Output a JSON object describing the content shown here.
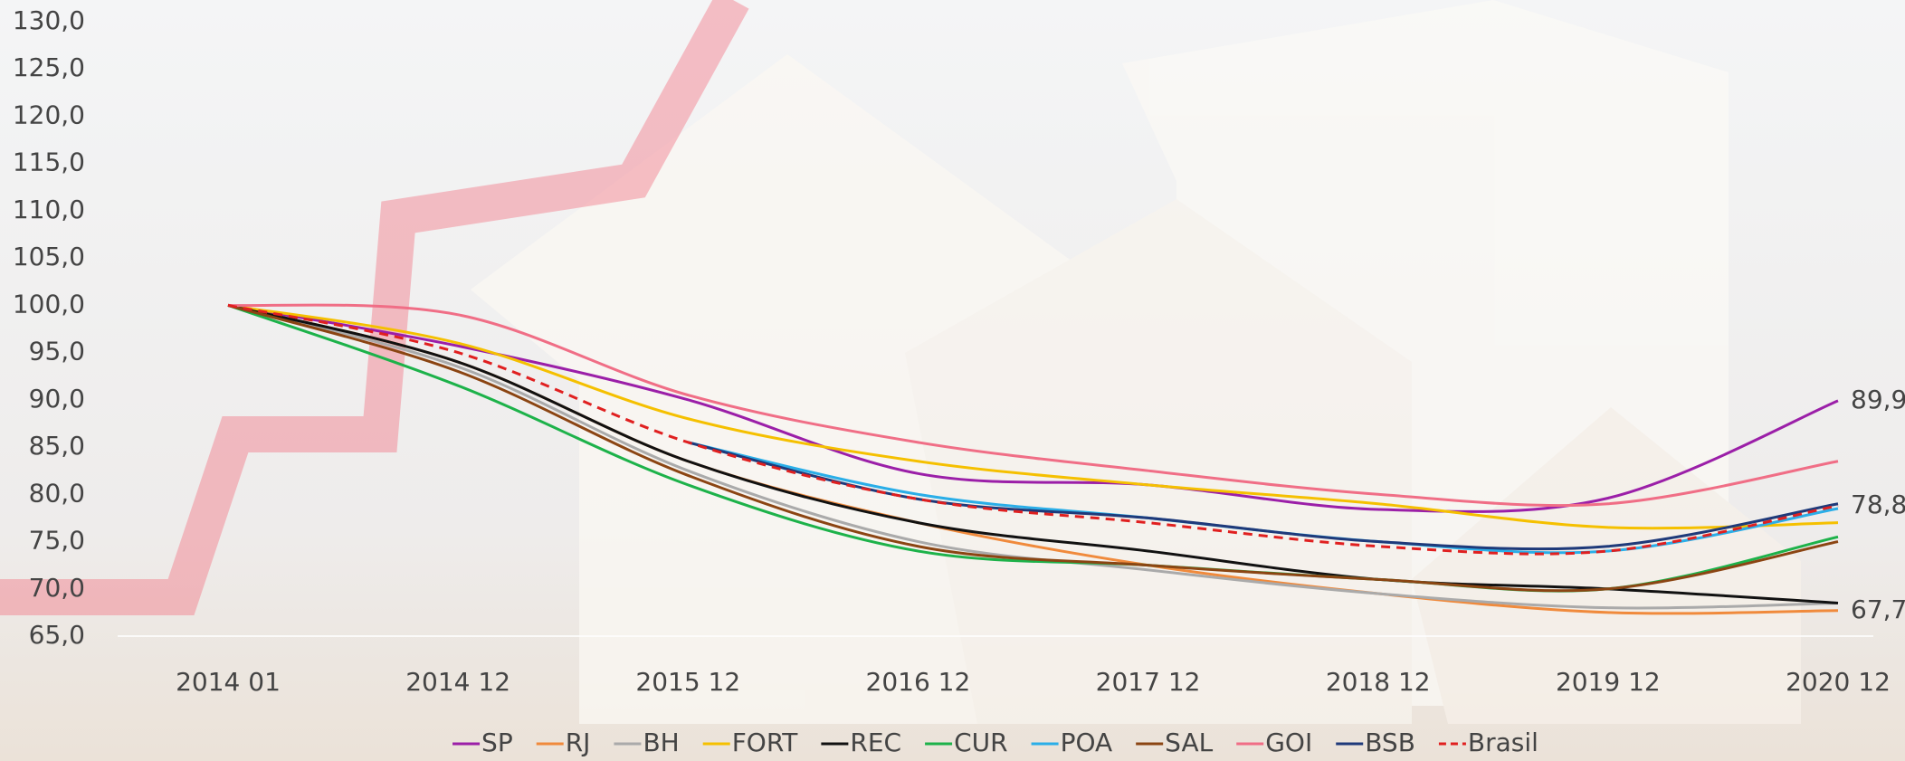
{
  "chart_data": {
    "type": "line",
    "categories": [
      "2014 01",
      "2014 12",
      "2015 12",
      "2016 12",
      "2017 12",
      "2018 12",
      "2019 12",
      "2020 12"
    ],
    "ylim": [
      65,
      130
    ],
    "yticks": [
      {
        "value": 65,
        "label": "65,0"
      },
      {
        "value": 70,
        "label": "70,0"
      },
      {
        "value": 75,
        "label": "75,0"
      },
      {
        "value": 80,
        "label": "80,0"
      },
      {
        "value": 85,
        "label": "85,0"
      },
      {
        "value": 90,
        "label": "90,0"
      },
      {
        "value": 95,
        "label": "95,0"
      },
      {
        "value": 100,
        "label": "100,0"
      },
      {
        "value": 105,
        "label": "105,0"
      },
      {
        "value": 110,
        "label": "110,0"
      },
      {
        "value": 115,
        "label": "115,0"
      },
      {
        "value": 120,
        "label": "120,0"
      },
      {
        "value": 125,
        "label": "125,0"
      },
      {
        "value": 130,
        "label": "130,0"
      }
    ],
    "grid": false,
    "series": [
      {
        "name": "SP",
        "color": "#9b1fa8",
        "values": [
          100,
          95.7,
          90,
          82.2,
          81,
          78.4,
          79.6,
          89.9
        ],
        "value_labels": [
          null,
          null,
          null,
          null,
          null,
          null,
          null,
          "89,9"
        ]
      },
      {
        "name": "RJ",
        "color": "#f08a3c",
        "values": [
          100,
          94,
          83.5,
          77,
          72.5,
          69.5,
          67.5,
          67.7
        ],
        "value_labels": [
          null,
          null,
          null,
          null,
          null,
          null,
          null,
          "67,7"
        ]
      },
      {
        "name": "BH",
        "color": "#aaaaaa",
        "values": [
          100,
          93.5,
          82.5,
          75,
          72,
          69.5,
          68,
          68.5
        ]
      },
      {
        "name": "FORT",
        "color": "#f5c000",
        "values": [
          100,
          96,
          88,
          83.5,
          81,
          79,
          76.5,
          77
        ]
      },
      {
        "name": "REC",
        "color": "#111111",
        "values": [
          100,
          94,
          83.5,
          77,
          74,
          71,
          70,
          68.5
        ]
      },
      {
        "name": "CUR",
        "color": "#1db24a",
        "values": [
          100,
          91.5,
          81,
          74,
          72.5,
          71,
          70,
          75.5
        ]
      },
      {
        "name": "POA",
        "color": "#2aaee8",
        "values": [
          null,
          null,
          85.5,
          80,
          77.5,
          75,
          74,
          78.5
        ]
      },
      {
        "name": "SAL",
        "color": "#8b4513",
        "values": [
          100,
          93,
          82,
          74.5,
          72.5,
          71,
          70,
          75
        ]
      },
      {
        "name": "GOI",
        "color": "#f06e86",
        "values": [
          100,
          99,
          90.5,
          85.5,
          82.5,
          80,
          79,
          83.5
        ]
      },
      {
        "name": "BSB",
        "color": "#1f3a7a",
        "values": [
          null,
          null,
          85.5,
          79.5,
          77.5,
          75,
          74.5,
          79
        ]
      },
      {
        "name": "Brasil",
        "color": "#e02020",
        "dash": true,
        "values": [
          100,
          95,
          85.5,
          79.5,
          77,
          74.5,
          74,
          78.8
        ],
        "value_labels": [
          null,
          null,
          null,
          null,
          null,
          null,
          null,
          "78,8"
        ]
      }
    ]
  }
}
